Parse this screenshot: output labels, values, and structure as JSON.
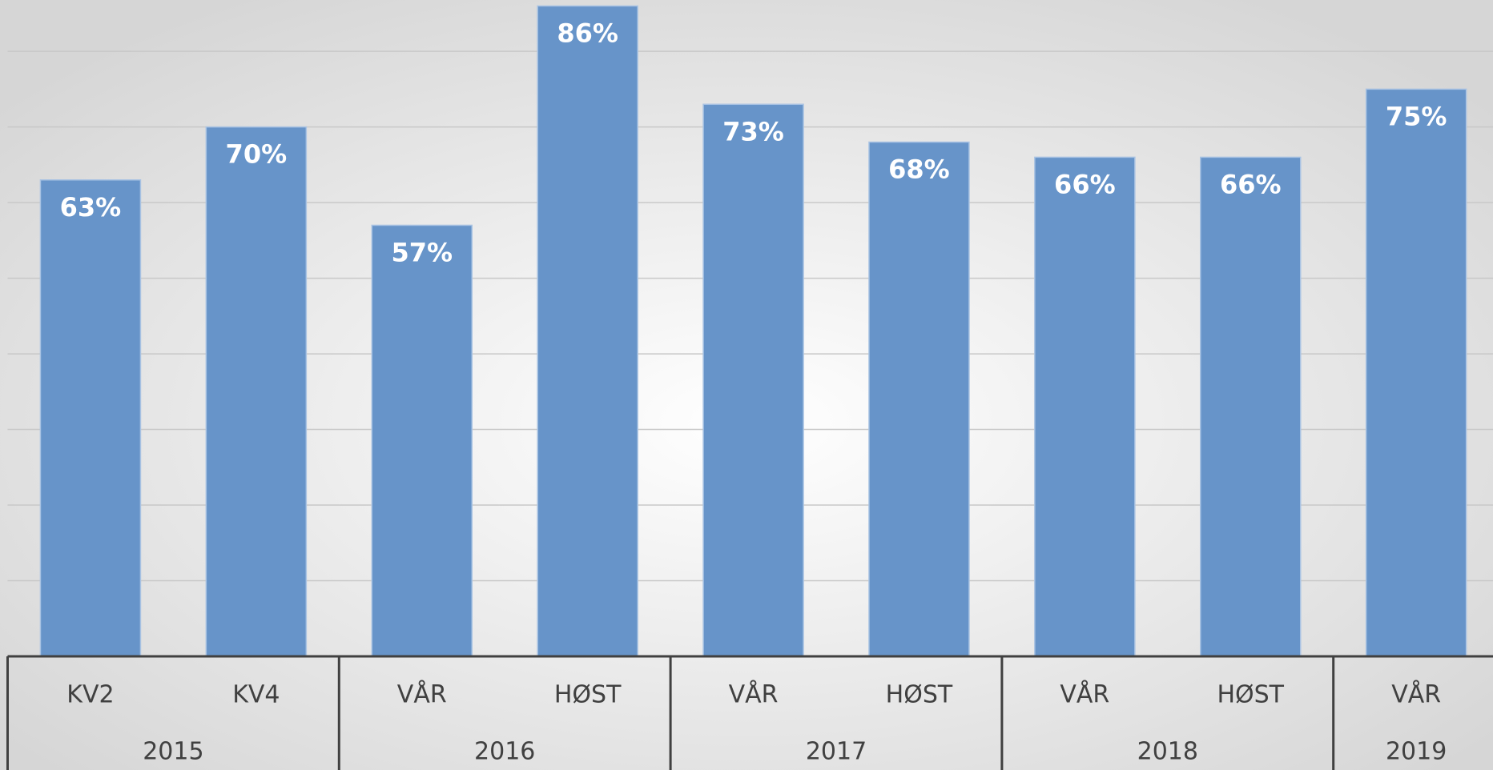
{
  "chart_data": {
    "type": "bar",
    "groups": [
      {
        "name": "2015",
        "categories": [
          "KV2",
          "KV4"
        ]
      },
      {
        "name": "2016",
        "categories": [
          "VÅR",
          "HØST"
        ]
      },
      {
        "name": "2017",
        "categories": [
          "VÅR",
          "HØST"
        ]
      },
      {
        "name": "2018",
        "categories": [
          "VÅR",
          "HØST"
        ]
      },
      {
        "name": "2019",
        "categories": [
          "VÅR"
        ]
      }
    ],
    "values": [
      63,
      70,
      57,
      86,
      73,
      68,
      66,
      66,
      75
    ],
    "value_labels": [
      "63%",
      "70%",
      "57%",
      "86%",
      "73%",
      "68%",
      "66%",
      "66%",
      "75%"
    ],
    "color": "#6794c9",
    "ylim": [
      0,
      87
    ],
    "yticks": [
      0,
      10,
      20,
      30,
      40,
      50,
      60,
      70,
      80
    ],
    "grid": true
  }
}
